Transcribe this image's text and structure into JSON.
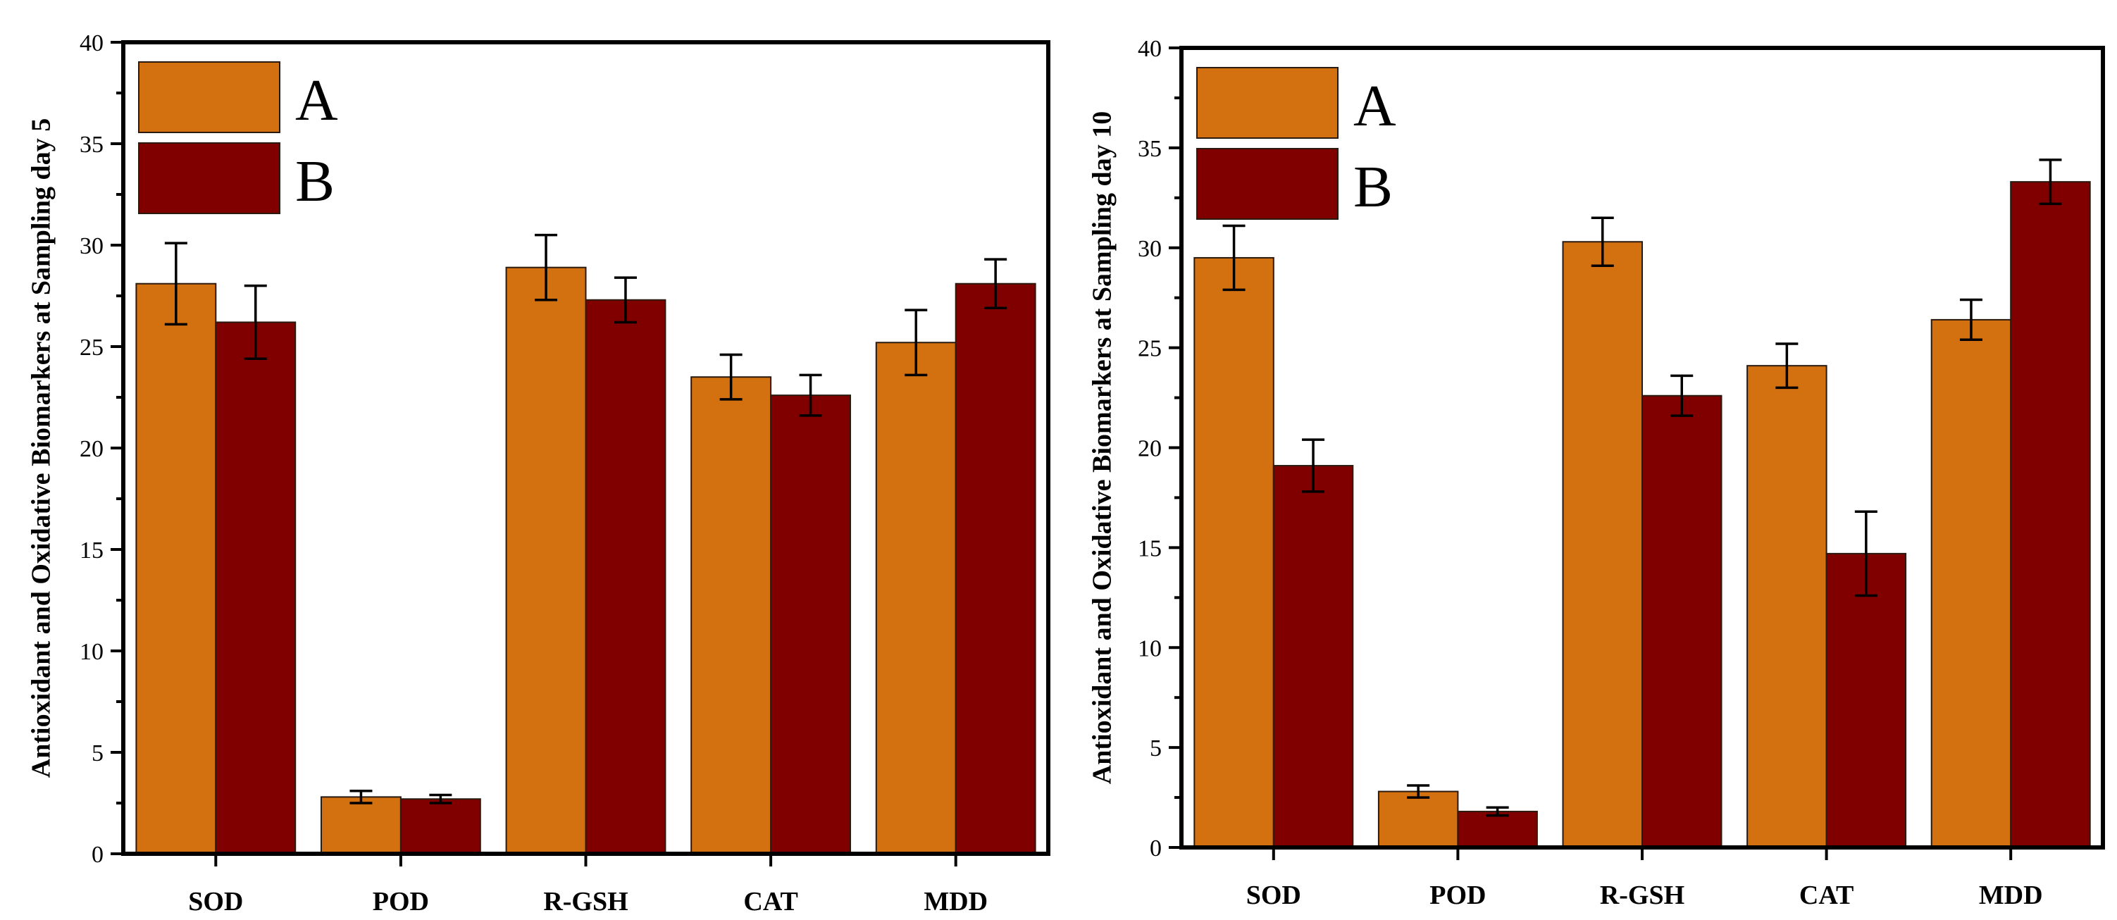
{
  "colors": {
    "A": "#d3700f",
    "B": "#800000"
  },
  "chart_data": [
    {
      "type": "bar",
      "ylabel": "Antioxidant and Oxidative Biomarkers at Sampling day 5",
      "xlabel": "",
      "ylim": [
        0,
        40
      ],
      "yticks": [
        0,
        5,
        10,
        15,
        20,
        25,
        30,
        35,
        40
      ],
      "categories": [
        "SOD",
        "POD",
        "R-GSH",
        "CAT",
        "MDD"
      ],
      "legend_position": "top-left",
      "series": [
        {
          "name": "A",
          "values": [
            28.1,
            2.8,
            28.9,
            23.5,
            25.2
          ],
          "errors": [
            2.0,
            0.3,
            1.6,
            1.1,
            1.6
          ]
        },
        {
          "name": "B",
          "values": [
            26.2,
            2.7,
            27.3,
            22.6,
            28.1
          ],
          "errors": [
            1.8,
            0.2,
            1.1,
            1.0,
            1.2
          ]
        }
      ]
    },
    {
      "type": "bar",
      "ylabel": "Antioxidant and Oxidative Biomarkers at Sampling day 10",
      "xlabel": "",
      "ylim": [
        0,
        40
      ],
      "yticks": [
        0,
        5,
        10,
        15,
        20,
        25,
        30,
        35,
        40
      ],
      "categories": [
        "SOD",
        "POD",
        "R-GSH",
        "CAT",
        "MDD"
      ],
      "legend_position": "top-left",
      "series": [
        {
          "name": "A",
          "values": [
            29.5,
            2.8,
            30.3,
            24.1,
            26.4
          ],
          "errors": [
            1.6,
            0.3,
            1.2,
            1.1,
            1.0
          ]
        },
        {
          "name": "B",
          "values": [
            19.1,
            1.8,
            22.6,
            14.7,
            33.3
          ],
          "errors": [
            1.3,
            0.2,
            1.0,
            2.1,
            1.1
          ]
        }
      ]
    }
  ]
}
